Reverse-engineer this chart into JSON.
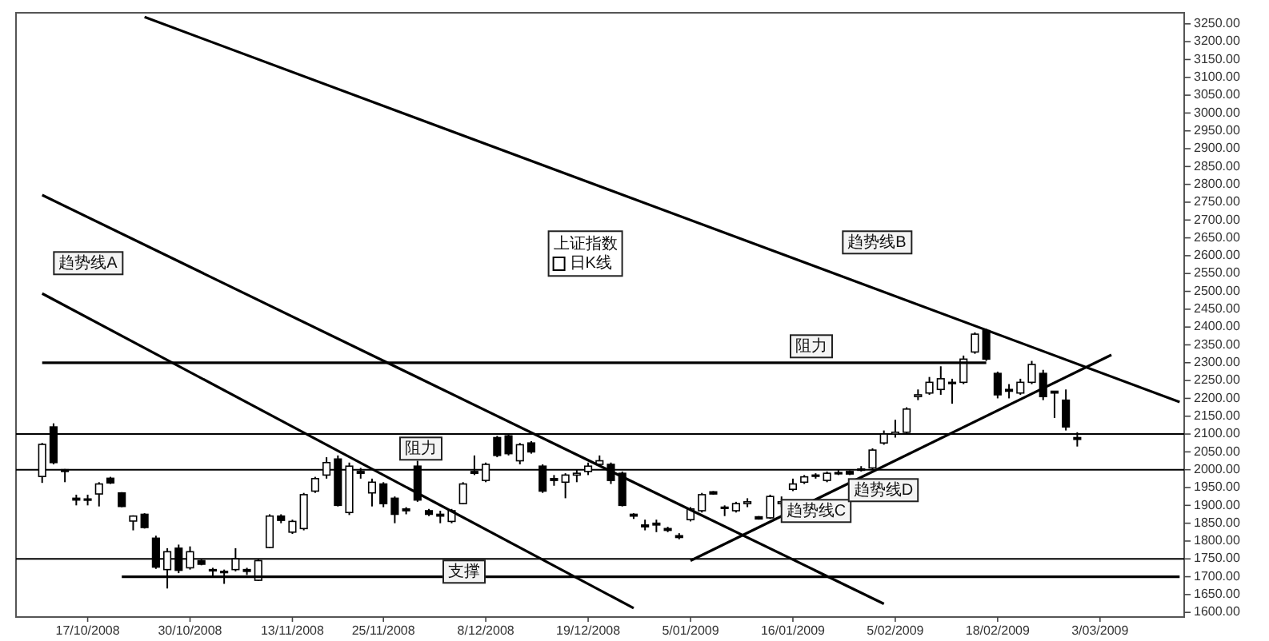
{
  "chart_data": {
    "type": "candlestick",
    "categories": [
      null,
      null,
      null,
      null,
      "17/10/2008",
      null,
      null,
      null,
      null,
      null,
      null,
      null,
      null,
      "30/10/2008",
      null,
      null,
      null,
      null,
      null,
      null,
      null,
      null,
      "13/11/2008",
      null,
      null,
      null,
      null,
      null,
      null,
      null,
      "25/11/2008",
      null,
      null,
      null,
      null,
      null,
      null,
      null,
      null,
      "8/12/2008",
      null,
      null,
      null,
      null,
      null,
      null,
      null,
      null,
      "19/12/2008",
      null,
      null,
      null,
      null,
      null,
      null,
      null,
      null,
      "5/01/2009",
      null,
      null,
      null,
      null,
      null,
      null,
      null,
      null,
      "16/01/2009",
      null,
      null,
      null,
      null,
      null,
      null,
      null,
      null,
      "5/02/2009",
      null,
      null,
      null,
      null,
      null,
      null,
      null,
      null,
      "18/02/2009",
      null,
      null,
      null,
      null,
      null,
      null,
      null,
      null,
      "3/03/2009",
      null,
      null,
      null,
      null,
      null,
      null,
      null
    ],
    "ylim": [
      1587,
      3281
    ],
    "yticks": [
      {
        "value": 1600,
        "label": "1600.00"
      },
      {
        "value": 1650,
        "label": "1650.00"
      },
      {
        "value": 1700,
        "label": "1700.00"
      },
      {
        "value": 1750,
        "label": "1750.00"
      },
      {
        "value": 1800,
        "label": "1800.00"
      },
      {
        "value": 1850,
        "label": "1850.00"
      },
      {
        "value": 1900,
        "label": "1900.00"
      },
      {
        "value": 1950,
        "label": "1950.00"
      },
      {
        "value": 2000,
        "label": "2000.00"
      },
      {
        "value": 2050,
        "label": "2050.00"
      },
      {
        "value": 2100,
        "label": "2100.00"
      },
      {
        "value": 2150,
        "label": "2150.00"
      },
      {
        "value": 2200,
        "label": "2200.00"
      },
      {
        "value": 2250,
        "label": "2250.00"
      },
      {
        "value": 2300,
        "label": "2300.00"
      },
      {
        "value": 2350,
        "label": "2350.00"
      },
      {
        "value": 2400,
        "label": "2400.00"
      },
      {
        "value": 2450,
        "label": "2450.00"
      },
      {
        "value": 2500,
        "label": "2500.00"
      },
      {
        "value": 2550,
        "label": "2550.00"
      },
      {
        "value": 2600,
        "label": "2600.00"
      },
      {
        "value": 2650,
        "label": "2650.00"
      },
      {
        "value": 2700,
        "label": "2700.00"
      },
      {
        "value": 2750,
        "label": "2750.00"
      },
      {
        "value": 2800,
        "label": "2800.00"
      },
      {
        "value": 2850,
        "label": "2850.00"
      },
      {
        "value": 2900,
        "label": "2900.00"
      },
      {
        "value": 2950,
        "label": "2950.00"
      },
      {
        "value": 3000,
        "label": "3000.00"
      },
      {
        "value": 3050,
        "label": "3050.00"
      },
      {
        "value": 3100,
        "label": "3100.00"
      },
      {
        "value": 3150,
        "label": "3150.00"
      },
      {
        "value": 3200,
        "label": "3200.00"
      },
      {
        "value": 3250,
        "label": "3250.00"
      }
    ],
    "legend": "top",
    "legend_title": "上证指数",
    "series": [
      {
        "name": "日K线",
        "color": "#000000",
        "ohlc": [
          [
            1981,
            2075,
            1963,
            2071
          ],
          [
            2120,
            2130,
            2015,
            2020
          ],
          [
            2000,
            2002,
            1965,
            1995
          ],
          [
            1920,
            1930,
            1900,
            1915
          ],
          [
            1915,
            1930,
            1900,
            1918
          ],
          [
            1932,
            1965,
            1897,
            1960
          ],
          [
            1976,
            1980,
            1960,
            1963
          ],
          [
            1935,
            1937,
            1895,
            1897
          ],
          [
            1856,
            1872,
            1830,
            1870
          ],
          [
            1875,
            1878,
            1835,
            1838
          ],
          [
            1808,
            1815,
            1722,
            1727
          ],
          [
            1720,
            1780,
            1667,
            1770
          ],
          [
            1780,
            1790,
            1710,
            1718
          ],
          [
            1725,
            1785,
            1720,
            1770
          ],
          [
            1745,
            1748,
            1732,
            1735
          ],
          [
            1720,
            1725,
            1700,
            1718
          ],
          [
            1715,
            1720,
            1680,
            1712
          ],
          [
            1720,
            1780,
            1715,
            1750
          ],
          [
            1720,
            1725,
            1705,
            1715
          ],
          [
            1690,
            1748,
            1688,
            1745
          ],
          [
            1782,
            1875,
            1780,
            1870
          ],
          [
            1870,
            1875,
            1850,
            1858
          ],
          [
            1825,
            1860,
            1820,
            1855
          ],
          [
            1835,
            1935,
            1830,
            1930
          ],
          [
            1940,
            1980,
            1935,
            1975
          ],
          [
            1985,
            2035,
            1975,
            2020
          ],
          [
            2030,
            2040,
            1897,
            1900
          ],
          [
            1880,
            2020,
            1873,
            2010
          ],
          [
            1995,
            2005,
            1975,
            1990
          ],
          [
            1935,
            1975,
            1897,
            1965
          ],
          [
            1960,
            1965,
            1895,
            1905
          ],
          [
            1920,
            1925,
            1850,
            1875
          ],
          [
            1890,
            1895,
            1875,
            1885
          ],
          [
            2010,
            2025,
            1910,
            1915
          ],
          [
            1885,
            1890,
            1870,
            1875
          ],
          [
            1875,
            1885,
            1850,
            1870
          ],
          [
            1855,
            1890,
            1850,
            1885
          ],
          [
            1905,
            1965,
            1903,
            1960
          ],
          [
            1995,
            2040,
            1985,
            1990
          ],
          [
            1970,
            2020,
            1965,
            2015
          ],
          [
            2090,
            2095,
            2035,
            2040
          ],
          [
            2095,
            2100,
            2040,
            2045
          ],
          [
            2025,
            2075,
            2015,
            2070
          ],
          [
            2075,
            2080,
            2045,
            2050
          ],
          [
            2010,
            2015,
            1935,
            1940
          ],
          [
            1975,
            1985,
            1955,
            1970
          ],
          [
            1965,
            1990,
            1920,
            1985
          ],
          [
            1985,
            2000,
            1965,
            1990
          ],
          [
            1995,
            2020,
            1985,
            2010
          ],
          [
            2015,
            2040,
            2010,
            2025
          ],
          [
            2015,
            2020,
            1960,
            1970
          ],
          [
            1990,
            1995,
            1897,
            1900
          ],
          [
            1875,
            1878,
            1862,
            1870
          ],
          [
            1845,
            1860,
            1830,
            1840
          ],
          [
            1850,
            1860,
            1825,
            1845
          ],
          [
            1835,
            1840,
            1825,
            1830
          ],
          [
            1815,
            1822,
            1805,
            1810
          ],
          [
            1860,
            1895,
            1855,
            1890
          ],
          [
            1885,
            1935,
            1880,
            1930
          ],
          [
            1938,
            1940,
            1930,
            1932
          ],
          [
            1895,
            1900,
            1870,
            1893
          ],
          [
            1885,
            1910,
            1880,
            1905
          ],
          [
            1905,
            1920,
            1895,
            1910
          ],
          [
            1868,
            1870,
            1860,
            1862
          ],
          [
            1865,
            1930,
            1862,
            1925
          ],
          [
            1905,
            1925,
            1895,
            1910
          ],
          [
            1945,
            1975,
            1940,
            1960
          ],
          [
            1965,
            1985,
            1960,
            1980
          ],
          [
            1985,
            1990,
            1975,
            1983
          ],
          [
            1970,
            1995,
            1965,
            1990
          ],
          [
            1990,
            2000,
            1985,
            1992
          ],
          [
            1995,
            1998,
            1985,
            1988
          ],
          [
            2000,
            2010,
            1995,
            2002
          ],
          [
            2005,
            2060,
            2000,
            2055
          ],
          [
            2075,
            2110,
            2070,
            2100
          ],
          [
            2100,
            2140,
            2090,
            2105
          ],
          [
            2105,
            2175,
            2100,
            2170
          ],
          [
            2205,
            2225,
            2195,
            2210
          ],
          [
            2215,
            2260,
            2210,
            2245
          ],
          [
            2225,
            2290,
            2210,
            2255
          ],
          [
            2245,
            2255,
            2185,
            2245
          ],
          [
            2245,
            2320,
            2240,
            2310
          ],
          [
            2330,
            2385,
            2325,
            2380
          ],
          [
            2390,
            2395,
            2305,
            2310
          ],
          [
            2270,
            2275,
            2200,
            2210
          ],
          [
            2225,
            2240,
            2200,
            2220
          ],
          [
            2215,
            2255,
            2210,
            2245
          ],
          [
            2245,
            2305,
            2240,
            2295
          ],
          [
            2270,
            2280,
            2195,
            2205
          ],
          [
            2220,
            2220,
            2145,
            2215
          ],
          [
            2195,
            2225,
            2110,
            2120
          ],
          [
            2090,
            2105,
            2065,
            2085
          ],
          null,
          null,
          null,
          null,
          null,
          null,
          null,
          null,
          null
        ]
      },
      {
        "type": "line",
        "color": "#000000",
        "values": [
          null,
          null,
          null,
          null,
          null,
          null,
          null,
          null,
          null,
          3269,
          null,
          null,
          null,
          null,
          null,
          null,
          null,
          null,
          null,
          null,
          null,
          null,
          null,
          null,
          null,
          null,
          null,
          null,
          null,
          null,
          null,
          null,
          null,
          null,
          null,
          null,
          null,
          null,
          null,
          null,
          null,
          null,
          null,
          null,
          null,
          null,
          null,
          null,
          null,
          null,
          null,
          null,
          null,
          null,
          null,
          null,
          null,
          null,
          null,
          null,
          null,
          null,
          null,
          null,
          null,
          null,
          null,
          null,
          null,
          null,
          null,
          null,
          null,
          null,
          null,
          null,
          null,
          null,
          null,
          null,
          null,
          null,
          null,
          null,
          null,
          null,
          null,
          null,
          null,
          null,
          null,
          null,
          null,
          null,
          null,
          null,
          null,
          null,
          null,
          null,
          2190
        ]
      },
      {
        "type": "line",
        "color": "#000000",
        "values": [
          2770,
          null,
          null,
          null,
          null,
          null,
          null,
          null,
          null,
          null,
          null,
          null,
          null,
          null,
          null,
          null,
          null,
          null,
          null,
          null,
          null,
          null,
          null,
          null,
          null,
          null,
          null,
          null,
          null,
          null,
          null,
          null,
          null,
          null,
          null,
          null,
          null,
          null,
          null,
          null,
          null,
          null,
          null,
          null,
          null,
          null,
          null,
          null,
          null,
          null,
          null,
          null,
          null,
          null,
          null,
          null,
          null,
          null,
          null,
          null,
          null,
          null,
          null,
          null,
          null,
          null,
          null,
          null,
          null,
          null,
          null,
          null,
          null,
          null,
          1624,
          null,
          null,
          null,
          null,
          null,
          null,
          null,
          null,
          null,
          null,
          null,
          null,
          null,
          null,
          null,
          null,
          null,
          null,
          null,
          null,
          null,
          null,
          null,
          null,
          null,
          null
        ]
      },
      {
        "type": "line",
        "color": "#000000",
        "values": [
          2494,
          null,
          null,
          null,
          null,
          null,
          null,
          null,
          null,
          null,
          null,
          null,
          null,
          null,
          null,
          null,
          null,
          null,
          null,
          null,
          null,
          null,
          null,
          null,
          null,
          null,
          null,
          null,
          null,
          null,
          null,
          null,
          null,
          null,
          null,
          null,
          null,
          null,
          null,
          null,
          null,
          null,
          null,
          null,
          null,
          null,
          null,
          null,
          null,
          null,
          null,
          null,
          1612,
          null,
          null,
          null,
          null,
          null,
          null,
          null,
          null,
          null,
          null,
          null,
          null,
          null,
          null,
          null,
          null,
          null,
          null,
          null,
          null,
          null,
          null,
          null,
          null,
          null,
          null,
          null,
          null,
          null,
          null,
          null,
          null,
          null,
          null,
          null,
          null,
          null,
          null,
          null,
          null,
          null,
          null,
          null,
          null,
          null,
          null,
          null,
          null
        ]
      },
      {
        "type": "line",
        "color": "#000000",
        "values": [
          null,
          null,
          null,
          null,
          null,
          null,
          null,
          null,
          null,
          null,
          null,
          null,
          null,
          null,
          null,
          null,
          null,
          null,
          null,
          null,
          null,
          null,
          null,
          null,
          null,
          null,
          null,
          null,
          null,
          null,
          null,
          null,
          null,
          null,
          null,
          null,
          null,
          null,
          null,
          null,
          null,
          null,
          null,
          null,
          null,
          null,
          null,
          null,
          null,
          null,
          null,
          null,
          null,
          null,
          null,
          null,
          null,
          1745,
          null,
          null,
          null,
          null,
          null,
          null,
          null,
          null,
          null,
          null,
          null,
          null,
          null,
          null,
          null,
          null,
          null,
          null,
          null,
          null,
          null,
          null,
          null,
          null,
          null,
          null,
          null,
          null,
          null,
          null,
          null,
          null,
          null,
          null,
          null,
          null,
          2322,
          null,
          null,
          null,
          null,
          null,
          null
        ]
      },
      {
        "type": "line",
        "color": "#000000",
        "values": [
          null,
          null,
          null,
          null,
          null,
          null,
          null,
          1700,
          null,
          null,
          null,
          null,
          null,
          null,
          null,
          null,
          null,
          null,
          null,
          null,
          null,
          null,
          null,
          null,
          null,
          null,
          null,
          null,
          null,
          null,
          null,
          null,
          null,
          null,
          null,
          null,
          null,
          null,
          null,
          null,
          null,
          null,
          null,
          null,
          null,
          null,
          null,
          null,
          null,
          null,
          null,
          null,
          null,
          null,
          null,
          null,
          null,
          null,
          null,
          null,
          null,
          null,
          null,
          null,
          null,
          null,
          null,
          null,
          null,
          null,
          null,
          null,
          null,
          null,
          null,
          null,
          null,
          null,
          null,
          null,
          null,
          null,
          null,
          null,
          null,
          null,
          null,
          null,
          null,
          null,
          null,
          null,
          null,
          null,
          null,
          null,
          null,
          null,
          null,
          null,
          1700
        ]
      },
      {
        "type": "line",
        "color": "#000000",
        "values": [
          2300,
          null,
          null,
          null,
          null,
          null,
          null,
          null,
          null,
          null,
          null,
          null,
          null,
          null,
          null,
          null,
          null,
          null,
          null,
          null,
          null,
          null,
          null,
          null,
          null,
          null,
          null,
          null,
          null,
          null,
          null,
          null,
          null,
          null,
          null,
          null,
          null,
          null,
          null,
          null,
          null,
          null,
          null,
          null,
          null,
          null,
          null,
          null,
          null,
          null,
          null,
          null,
          null,
          null,
          null,
          null,
          null,
          null,
          null,
          null,
          null,
          null,
          null,
          null,
          null,
          null,
          null,
          null,
          null,
          null,
          null,
          null,
          null,
          null,
          null,
          null,
          null,
          null,
          null,
          null,
          null,
          null,
          null,
          2300,
          null,
          null,
          null,
          null,
          null,
          null,
          null,
          null,
          null,
          null,
          null,
          null,
          null,
          null,
          null,
          null,
          null
        ]
      }
    ],
    "ref_lines": [
      {
        "axis": "y",
        "value": 1750,
        "color": "#000000"
      },
      {
        "axis": "y",
        "value": 2000,
        "color": "#000000"
      },
      {
        "axis": "y",
        "value": 2100,
        "color": "#000000"
      }
    ],
    "annotations": [
      "趋势线A",
      "趋势线B",
      "阻力",
      "阻力",
      "支撑",
      "趋势线C",
      "趋势线D"
    ]
  }
}
